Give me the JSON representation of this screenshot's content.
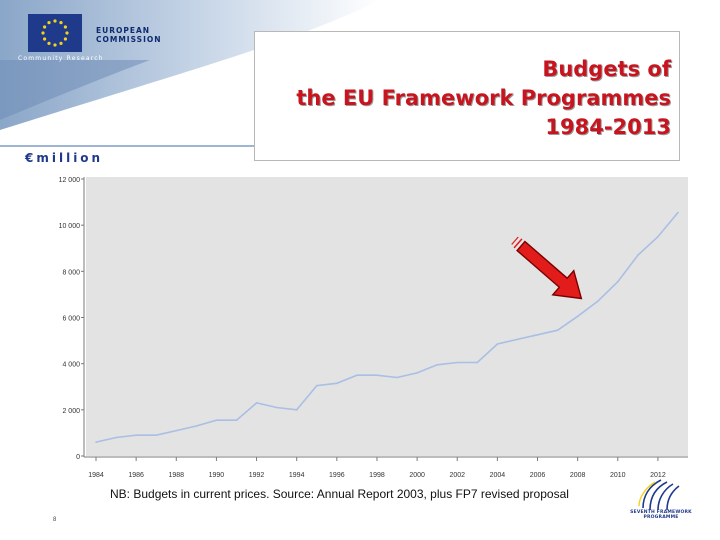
{
  "header": {
    "org_line1": "EUROPEAN",
    "org_line2": "COMMISSION",
    "org_sub": "Community Research",
    "title_line1": "Budgets of",
    "title_line2": "the EU Framework Programmes",
    "title_line3": "1984-2013",
    "unit": "€million"
  },
  "colors": {
    "title": "#c8141e",
    "brand_blue": "#1f3a8a",
    "line": "#a9bfe3",
    "plot_bg": "#e3e3e3",
    "arrow": "#e21b1b"
  },
  "chart_data": {
    "type": "line",
    "title": "",
    "xlabel": "",
    "ylabel": "",
    "x_tick_labels": [
      "1984",
      "1986",
      "1988",
      "1990",
      "1992",
      "1994",
      "1996",
      "1998",
      "2000",
      "2002",
      "2004",
      "2006",
      "2008",
      "2010",
      "2012"
    ],
    "y_tick_labels": [
      "0",
      "2 000",
      "4 000",
      "6 000",
      "8 000",
      "10 000",
      "12 000"
    ],
    "ylim": [
      0,
      12000
    ],
    "xlim": [
      1984,
      2013
    ],
    "grid": false,
    "x": [
      1984,
      1985,
      1986,
      1987,
      1988,
      1989,
      1990,
      1991,
      1992,
      1993,
      1994,
      1995,
      1996,
      1997,
      1998,
      1999,
      2000,
      2001,
      2002,
      2003,
      2004,
      2005,
      2006,
      2007,
      2008,
      2009,
      2010,
      2011,
      2012,
      2013
    ],
    "values": [
      600,
      800,
      900,
      900,
      1100,
      1300,
      1550,
      1550,
      2300,
      2100,
      2000,
      3050,
      3150,
      3500,
      3500,
      3400,
      3600,
      3950,
      4050,
      4050,
      4850,
      5050,
      5250,
      5450,
      6050,
      6700,
      7550,
      8700,
      9500,
      10550
    ]
  },
  "note": "NB: Budgets in current prices. Source: Annual Report 2003, plus FP7 revised proposal",
  "slide_number": "8",
  "fp7": {
    "line1": "SEVENTH FRAMEWORK",
    "line2": "PROGRAMME"
  }
}
